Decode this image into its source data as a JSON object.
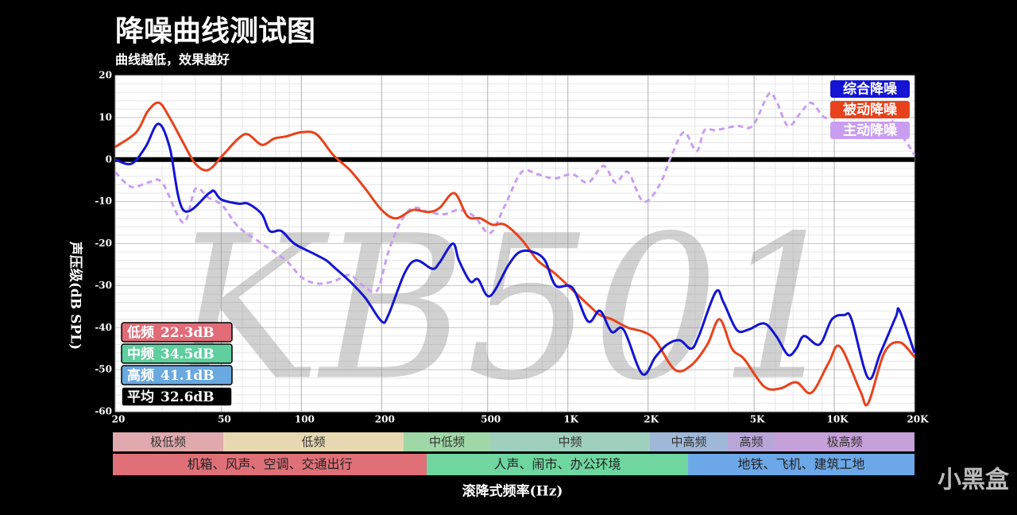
{
  "chart_data": {
    "type": "line",
    "title": "降噪曲线测试图",
    "subtitle": "曲线越低，效果越好",
    "y_label": "声压级(dB SPL)",
    "x_label": "滚降式频率(Hz)",
    "watermark": "KB501",
    "brand": "小黑盒",
    "log_x": true,
    "grid": true,
    "zero_line": true,
    "legend": "top-right",
    "xlim": [
      20,
      20000
    ],
    "ylim": [
      -60,
      20
    ],
    "xticks": [
      20,
      50,
      100,
      200,
      500,
      {
        "value": 1000,
        "label": "1K"
      },
      {
        "value": 2000,
        "label": "2K"
      },
      {
        "value": 5000,
        "label": "5K"
      },
      {
        "value": 10000,
        "label": "10K"
      },
      {
        "value": 20000,
        "label": "20K"
      }
    ],
    "yticks": [
      20,
      10,
      0,
      -10,
      -20,
      -30,
      -40,
      -50,
      -60
    ],
    "series": [
      {
        "name": "综合降噪",
        "color": "#1414d2",
        "line_style": "solid",
        "x": [
          20,
          23,
          26,
          29,
          32,
          36,
          45,
          47,
          50,
          58,
          63,
          71,
          76,
          84,
          94,
          112,
          124,
          132,
          152,
          174,
          200,
          212,
          244,
          270,
          310,
          330,
          370,
          390,
          430,
          460,
          510,
          600,
          660,
          740,
          820,
          900,
          1040,
          1190,
          1320,
          1460,
          1620,
          1900,
          2130,
          2360,
          2630,
          2900,
          3100,
          3590,
          3840,
          4300,
          4750,
          5450,
          6050,
          6700,
          7200,
          7700,
          8800,
          9800,
          10900,
          11600,
          13400,
          14900,
          17000,
          17600,
          20000
        ],
        "values": [
          0,
          -1,
          3,
          8.5,
          3,
          -12,
          -8,
          -7.5,
          -9.5,
          -10.5,
          -10.5,
          -13,
          -17,
          -17,
          -20,
          -22.5,
          -24,
          -25.5,
          -29,
          -33,
          -38.5,
          -37,
          -27,
          -24,
          -26,
          -24.5,
          -20,
          -24,
          -29,
          -28.5,
          -32.5,
          -25,
          -22,
          -22,
          -24,
          -30,
          -30.5,
          -38.5,
          -36,
          -41,
          -40.5,
          -51,
          -47,
          -44,
          -43,
          -45,
          -42,
          -31.5,
          -34,
          -40.5,
          -40.5,
          -39,
          -42,
          -46.5,
          -45,
          -42,
          -44,
          -38,
          -37,
          -38,
          -52,
          -46,
          -37.5,
          -36,
          -46
        ]
      },
      {
        "name": "被动降噪",
        "color": "#e8421c",
        "line_style": "solid",
        "x": [
          20,
          24,
          26.5,
          29.2,
          32,
          36,
          40,
          44.6,
          50.6,
          58,
          63,
          71,
          79,
          87.5,
          100,
          114,
          132,
          152,
          174,
          200,
          226,
          262,
          300,
          330,
          375,
          420,
          470,
          520,
          580,
          670,
          770,
          890,
          1040,
          1190,
          1320,
          1460,
          1680,
          1920,
          2130,
          2520,
          2900,
          3340,
          3710,
          4130,
          4590,
          5450,
          6250,
          7200,
          8200,
          9500,
          10500,
          12500,
          13400,
          15400,
          17600,
          20000
        ],
        "values": [
          3,
          6.5,
          11.5,
          13.5,
          10,
          4,
          -1,
          -2.5,
          1,
          5,
          6,
          3.5,
          5,
          5.5,
          6.5,
          6,
          1,
          -2.5,
          -7,
          -12,
          -14,
          -12,
          -12.5,
          -11.5,
          -8,
          -13.5,
          -14,
          -15.5,
          -15.5,
          -19,
          -24,
          -27,
          -31,
          -34.5,
          -37,
          -38,
          -40,
          -41,
          -43,
          -50,
          -49,
          -44,
          -38,
          -45,
          -47.5,
          -54,
          -54.5,
          -53,
          -55.5,
          -48.5,
          -44.5,
          -55,
          -58,
          -46,
          -43.5,
          -47
        ]
      },
      {
        "name": "主动降噪",
        "color": "#c99ef0",
        "line_style": "dashed",
        "x": [
          20,
          23,
          26.5,
          30,
          36,
          40,
          44.6,
          50.6,
          58,
          71,
          87.5,
          100,
          114,
          132,
          152,
          174,
          193,
          212,
          235,
          262,
          300,
          345,
          390,
          445,
          510,
          580,
          670,
          770,
          890,
          1040,
          1190,
          1360,
          1510,
          1680,
          1920,
          2210,
          2450,
          2730,
          3040,
          3260,
          3590,
          4300,
          4930,
          5660,
          6050,
          6700,
          7450,
          8200,
          9200,
          10200,
          12500,
          15400,
          18700,
          20000
        ],
        "values": [
          -3,
          -6.5,
          -5.5,
          -5.5,
          -15,
          -7,
          -9,
          -11,
          -16,
          -20,
          -24,
          -28,
          -29.5,
          -29,
          -27.5,
          -30.5,
          -31,
          -22,
          -15,
          -11.5,
          -12.5,
          -13,
          -12,
          -13.5,
          -17.5,
          -11,
          -3,
          -3.5,
          -4.5,
          -3.5,
          -5.5,
          -1.5,
          -5.5,
          -3,
          -10,
          -6,
          1,
          6.5,
          2,
          7,
          7,
          8,
          8,
          15.5,
          14,
          8,
          11,
          13.5,
          10,
          11.5,
          12,
          11,
          4,
          1
        ]
      }
    ],
    "summary": [
      {
        "name": "低频",
        "text": "22.3dB",
        "color": "#e06c78"
      },
      {
        "name": "中频",
        "text": "34.5dB",
        "color": "#5fcf9f"
      },
      {
        "name": "高频",
        "text": "41.1dB",
        "color": "#6aa8e0"
      },
      {
        "name": "平均",
        "text": "32.6dB",
        "color": "#000000"
      }
    ],
    "bands": [
      {
        "label": "极低频",
        "color": "#e0a9ad"
      },
      {
        "label": "低频",
        "color": "#e8d8b2"
      },
      {
        "label": "中低频",
        "color": "#9fd8a6"
      },
      {
        "label": "中频",
        "color": "#9fcfbd"
      },
      {
        "label": "中高频",
        "color": "#a0b8d8"
      },
      {
        "label": "高频",
        "color": "#b9a6d8"
      },
      {
        "label": "极高频",
        "color": "#c6a0d8"
      }
    ],
    "scenes": [
      {
        "label": "机箱、风声、空调、交通出行",
        "color": "#e07078"
      },
      {
        "label": "人声、闹市、办公环境",
        "color": "#6fd6a0"
      },
      {
        "label": "地铁、飞机、建筑工地",
        "color": "#6ca8e8"
      }
    ]
  }
}
